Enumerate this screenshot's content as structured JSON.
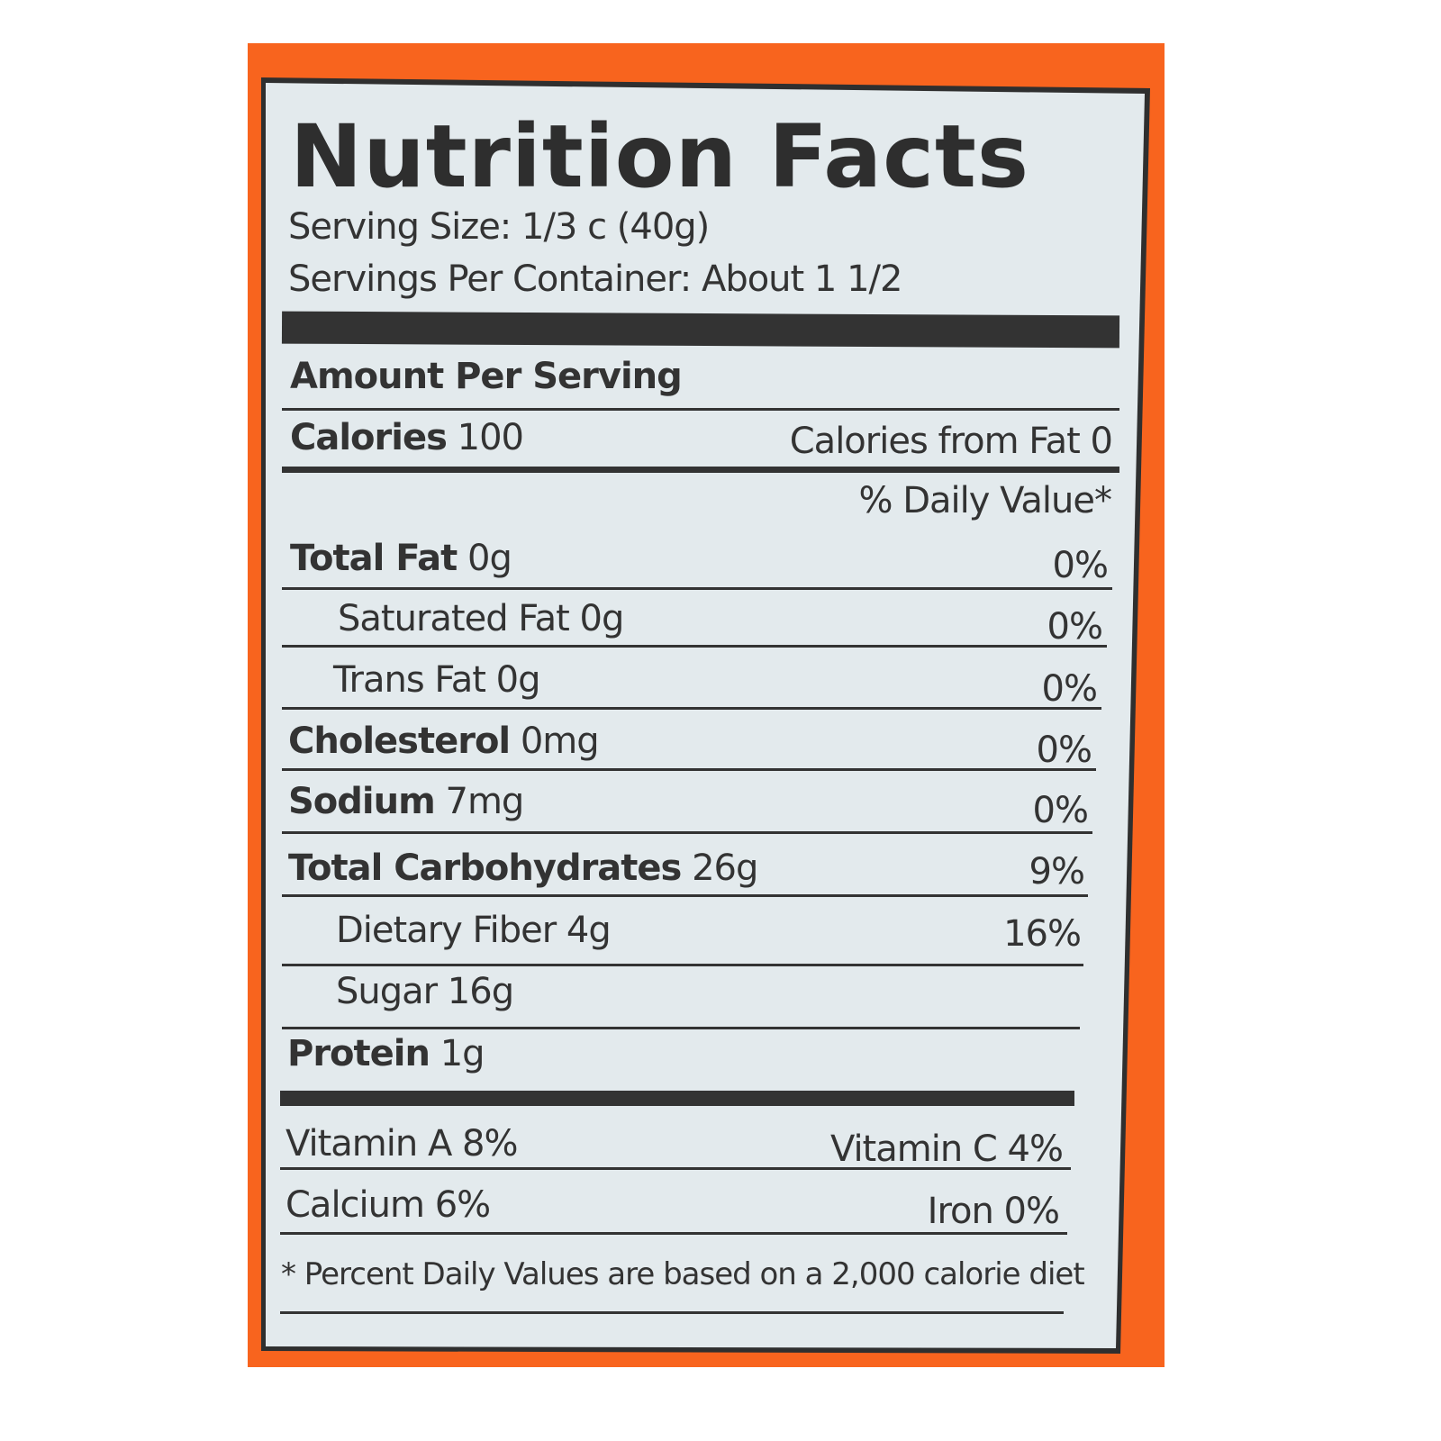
{
  "colors": {
    "background": "#f8641e",
    "panel": "#e3eaed",
    "ink": "#333333"
  },
  "title": "Nutrition Facts",
  "serving_size": "Serving Size: 1/3 c (40g)",
  "servings_per_container": "Servings Per Container: About 1 1/2",
  "amount_per_serving": "Amount Per Serving",
  "calories": {
    "label": "Calories",
    "value": "100",
    "from_fat": "Calories from Fat 0"
  },
  "daily_value_header": "% Daily Value*",
  "nutrients": [
    {
      "label": "Total Fat",
      "amount": "0g",
      "dv": "0%"
    },
    {
      "label": "Saturated Fat 0g",
      "amount": "",
      "dv": "0%"
    },
    {
      "label": "Trans Fat 0g",
      "amount": "",
      "dv": "0%"
    },
    {
      "label": "Cholesterol",
      "amount": "0mg",
      "dv": "0%"
    },
    {
      "label": "Sodium",
      "amount": "7mg",
      "dv": "0%"
    },
    {
      "label": "Total Carbohydrates",
      "amount": "26g",
      "dv": "9%"
    },
    {
      "label": "Dietary Fiber 4g",
      "amount": "",
      "dv": "16%"
    },
    {
      "label": "Sugar 16g",
      "amount": "",
      "dv": ""
    },
    {
      "label": "Protein",
      "amount": "1g",
      "dv": ""
    }
  ],
  "vitamins": {
    "a": "Vitamin A 8%",
    "c": "Vitamin C 4%",
    "calcium": "Calcium 6%",
    "iron": "Iron 0%"
  },
  "footnote": "* Percent Daily Values are based on a 2,000 calorie diet"
}
